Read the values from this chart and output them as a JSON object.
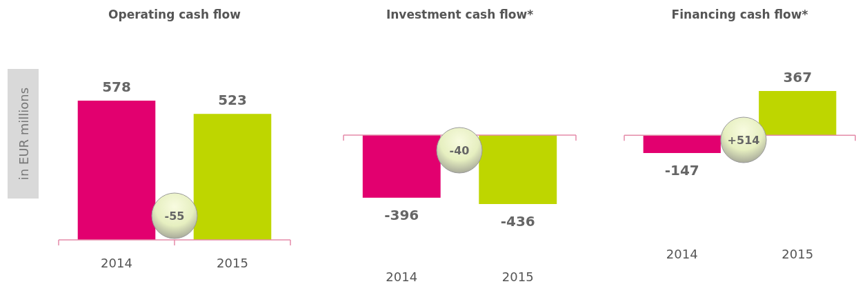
{
  "chart_data": [
    {
      "type": "bar",
      "title": "Operating cash flow",
      "ylabel": "in EUR millions",
      "categories": [
        "2014",
        "2015"
      ],
      "values": [
        578,
        523
      ],
      "colors": [
        "#e2006f",
        "#bed600"
      ],
      "data_labels": true,
      "annotations": [
        "-55"
      ]
    },
    {
      "type": "bar",
      "title": "Investment cash flow*",
      "categories": [
        "2014",
        "2015"
      ],
      "values": [
        -396,
        -436
      ],
      "colors": [
        "#e2006f",
        "#bed600"
      ],
      "data_labels": true,
      "annotations": [
        "-40"
      ],
      "ref_lines": [
        {
          "axis": "y",
          "value": 0,
          "color": "#e48aa8"
        }
      ]
    },
    {
      "type": "bar",
      "title": "Financing cash flow*",
      "categories": [
        "2014",
        "2015"
      ],
      "values": [
        -147,
        367
      ],
      "colors": [
        "#e2006f",
        "#bed600"
      ],
      "data_labels": true,
      "annotations": [
        "+514"
      ],
      "ref_lines": [
        {
          "axis": "y",
          "value": 0,
          "color": "#e48aa8"
        }
      ]
    }
  ]
}
